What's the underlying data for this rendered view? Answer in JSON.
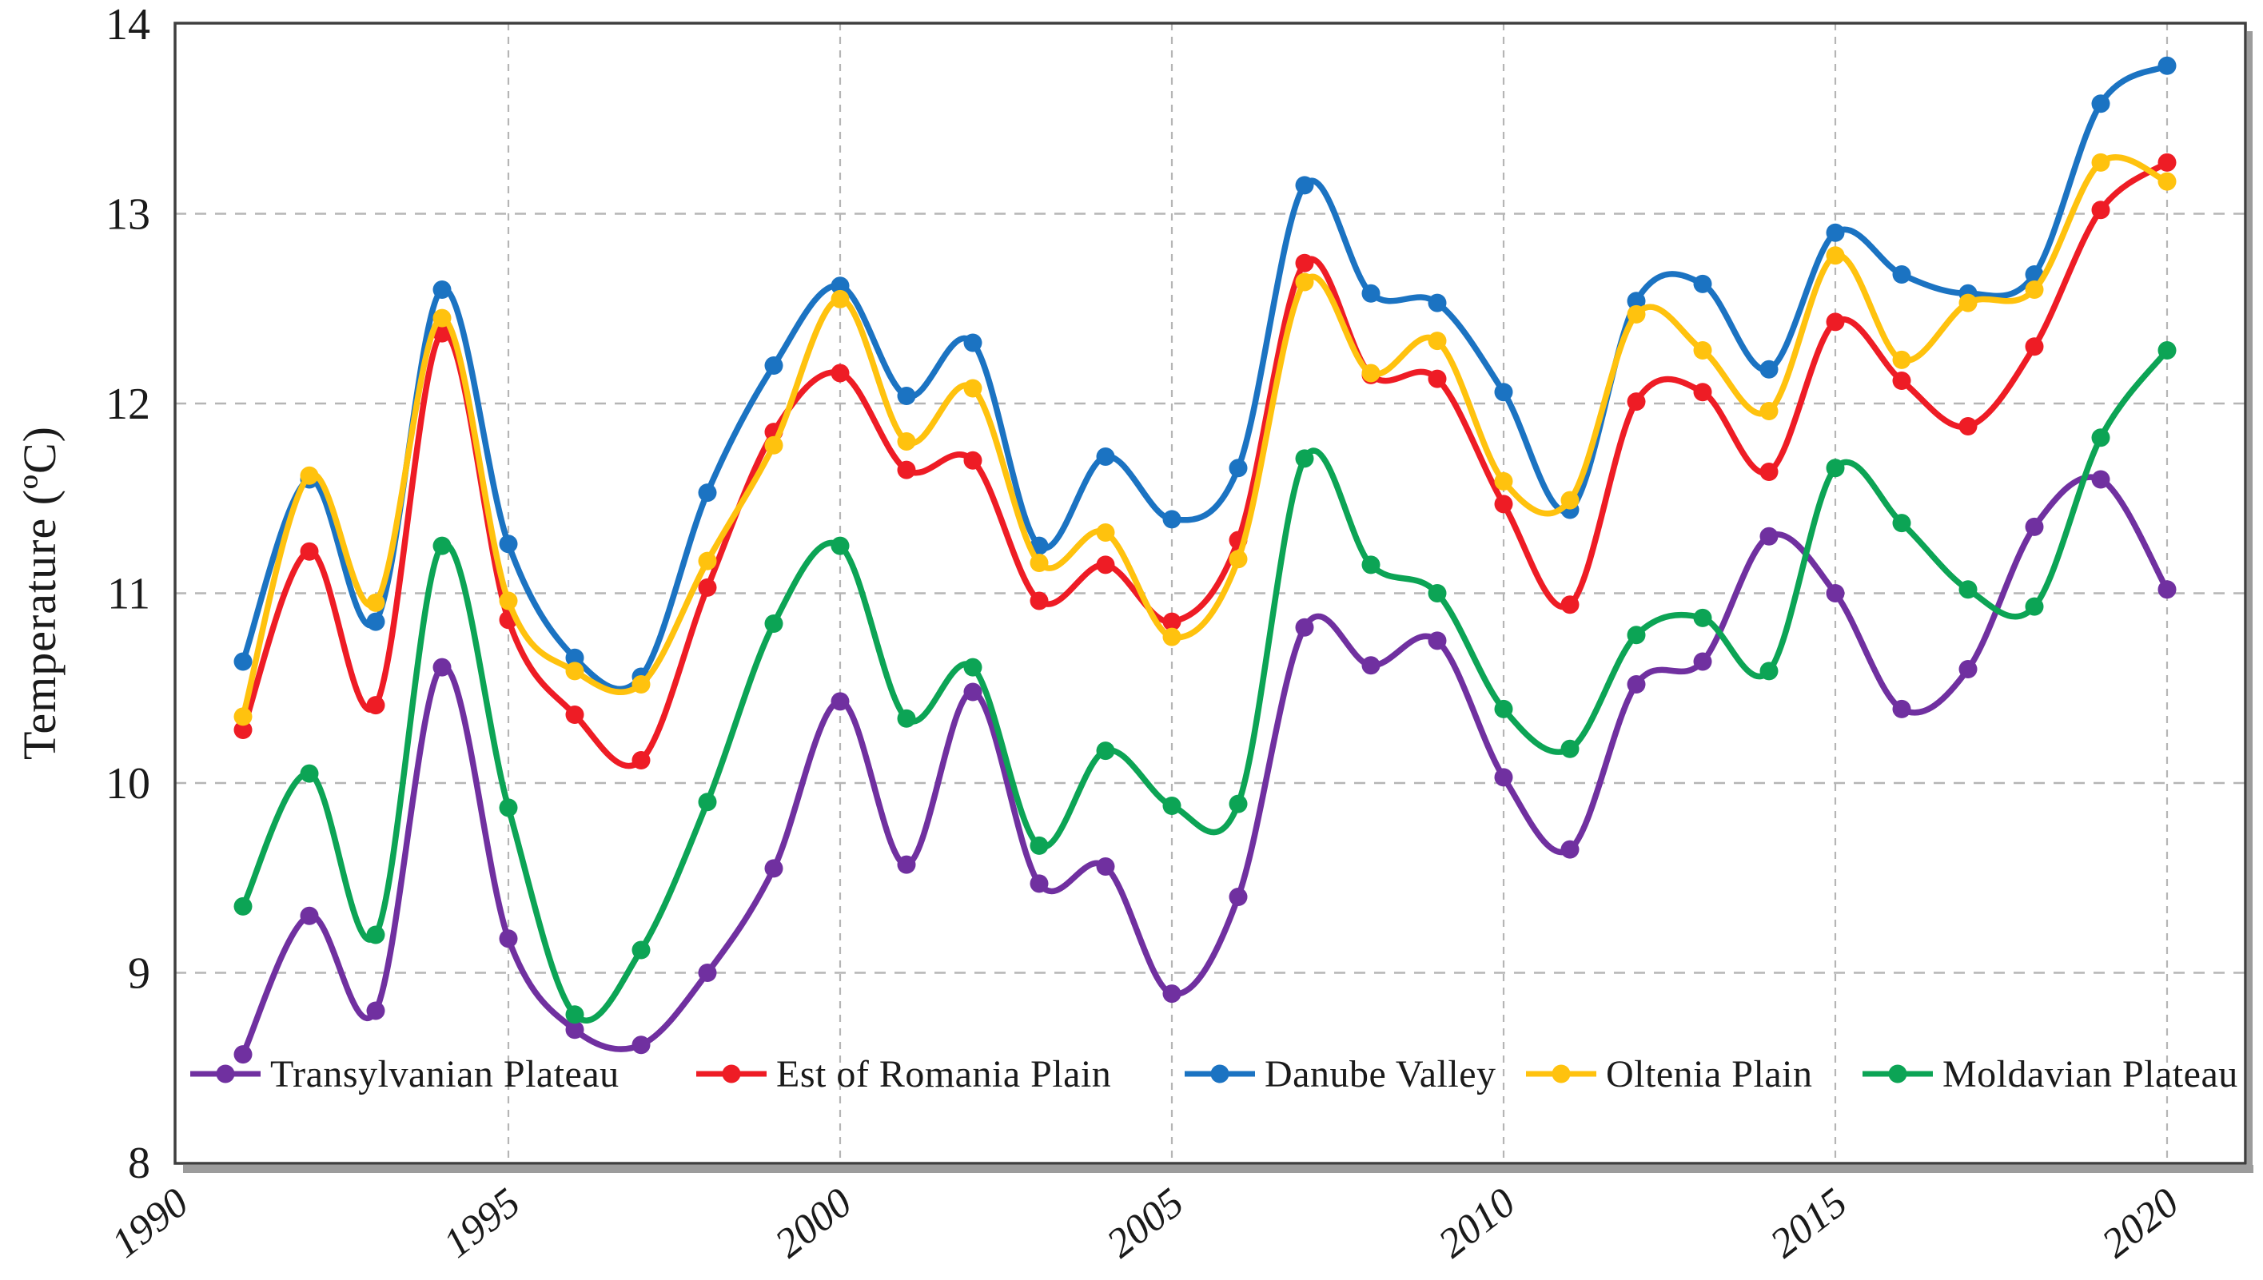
{
  "page": {
    "background": "#ffffff"
  },
  "axes": {
    "y_title": "Temperature (ºC)",
    "x_tick_labels": [
      "1990",
      "1995",
      "2000",
      "2005",
      "2010",
      "2015",
      "2020"
    ],
    "y_tick_labels": [
      "8",
      "9",
      "10",
      "11",
      "12",
      "13",
      "14"
    ]
  },
  "colors": {
    "frame": "#3f3f3f",
    "frame_shadow": "#9c9c9c",
    "gridline": "#b5b5b5",
    "text": "#1a1a1a",
    "transylvanian_plateau": "#7030A0",
    "est_of_romania_plain": "#EE1C25",
    "danube_valley": "#1B73C2",
    "oltenia_plain": "#FFC20E",
    "moldavian_plateau": "#0CA455"
  },
  "chart_data": {
    "type": "line",
    "title": "",
    "xlabel": "",
    "ylabel": "Temperature (ºC)",
    "xlim": [
      1990,
      2021.2
    ],
    "ylim": [
      8,
      14
    ],
    "xticks": [
      1990,
      1995,
      2000,
      2005,
      2010,
      2015,
      2020
    ],
    "yticks": [
      8,
      9,
      10,
      11,
      12,
      13,
      14
    ],
    "x_gridlines": [
      1995,
      2000,
      2005,
      2010,
      2015,
      2020
    ],
    "y_gridlines": [
      9,
      10,
      11,
      12,
      13
    ],
    "grid": "dashed",
    "smooth": true,
    "marker": "circle",
    "legend_position": "bottom-inside",
    "x": [
      1991,
      1992,
      1993,
      1994,
      1995,
      1996,
      1997,
      1998,
      1999,
      2000,
      2001,
      2002,
      2003,
      2004,
      2005,
      2006,
      2007,
      2008,
      2009,
      2010,
      2011,
      2012,
      2013,
      2014,
      2015,
      2016,
      2017,
      2018,
      2019,
      2020
    ],
    "series": [
      {
        "name": "Transylvanian Plateau",
        "color": "#7030A0",
        "values": [
          8.57,
          9.3,
          8.8,
          10.61,
          9.18,
          8.7,
          8.62,
          9.0,
          9.55,
          10.43,
          9.57,
          10.48,
          9.47,
          9.56,
          8.89,
          9.4,
          10.82,
          10.62,
          10.75,
          10.03,
          9.65,
          10.52,
          10.64,
          11.3,
          11.0,
          10.39,
          10.6,
          11.35,
          11.6,
          11.02
        ]
      },
      {
        "name": "Est of Romania Plain",
        "color": "#EE1C25",
        "values": [
          10.28,
          11.22,
          10.41,
          12.37,
          10.86,
          10.36,
          10.12,
          11.03,
          11.85,
          12.16,
          11.65,
          11.7,
          10.96,
          11.15,
          10.85,
          11.28,
          12.74,
          12.15,
          12.13,
          11.47,
          10.94,
          12.01,
          12.06,
          11.64,
          12.43,
          12.12,
          11.88,
          12.3,
          13.02,
          13.27
        ]
      },
      {
        "name": "Danube Valley",
        "color": "#1B73C2",
        "values": [
          10.64,
          11.6,
          10.85,
          12.6,
          11.26,
          10.66,
          10.56,
          11.53,
          12.2,
          12.62,
          12.04,
          12.32,
          11.25,
          11.72,
          11.39,
          11.66,
          13.15,
          12.58,
          12.53,
          12.06,
          11.44,
          12.54,
          12.63,
          12.18,
          12.9,
          12.68,
          12.58,
          12.68,
          13.58,
          13.78
        ]
      },
      {
        "name": "Oltenia Plain",
        "color": "#FFC20E",
        "values": [
          10.35,
          11.62,
          10.95,
          12.45,
          10.96,
          10.59,
          10.52,
          11.17,
          11.78,
          12.55,
          11.8,
          12.08,
          11.16,
          11.32,
          10.77,
          11.18,
          12.64,
          12.16,
          12.33,
          11.59,
          11.49,
          12.47,
          12.28,
          11.96,
          12.78,
          12.23,
          12.53,
          12.6,
          13.27,
          13.17
        ]
      },
      {
        "name": "Moldavian Plateau",
        "color": "#0CA455",
        "values": [
          9.35,
          10.05,
          9.2,
          11.25,
          9.87,
          8.78,
          9.12,
          9.9,
          10.84,
          11.25,
          10.34,
          10.61,
          9.67,
          10.17,
          9.88,
          9.89,
          11.71,
          11.15,
          11.0,
          10.39,
          10.18,
          10.78,
          10.87,
          10.59,
          11.66,
          11.37,
          11.02,
          10.93,
          11.82,
          12.28
        ]
      }
    ]
  }
}
